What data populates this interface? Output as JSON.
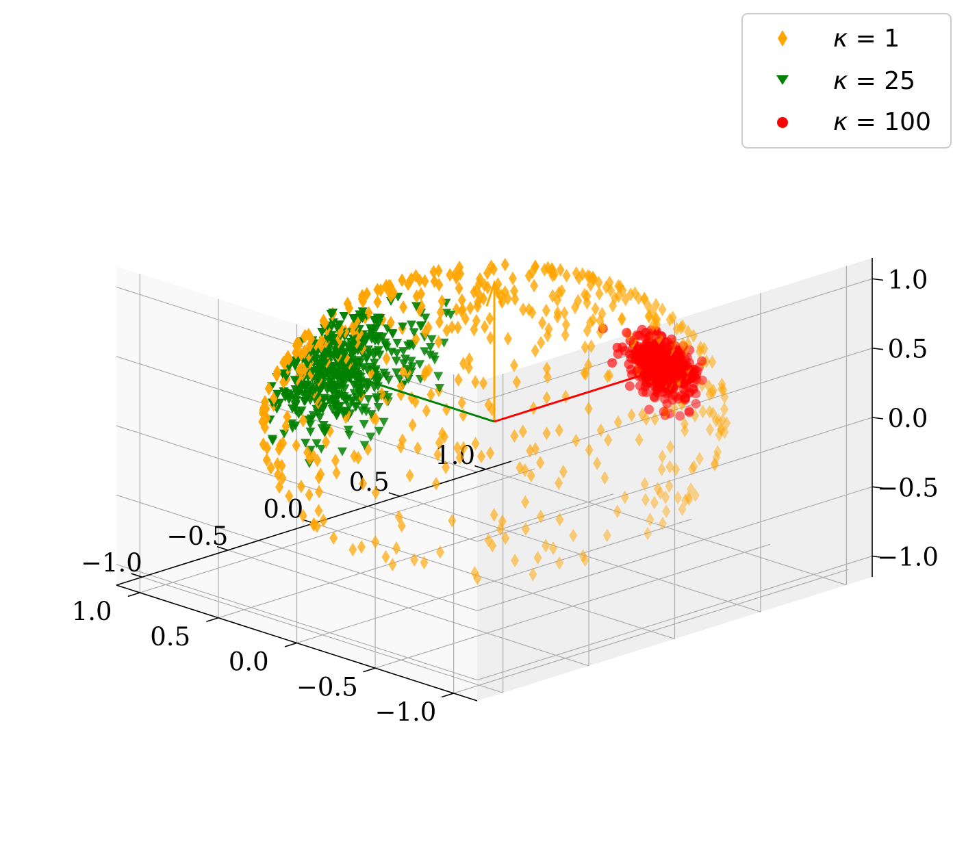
{
  "chart_data": {
    "type": "scatter",
    "projection": "3d",
    "title": "",
    "xlabel": "",
    "ylabel": "",
    "zlabel": "",
    "xlim": [
      -1.15,
      1.15
    ],
    "ylim": [
      -1.15,
      1.15
    ],
    "zlim": [
      -1.15,
      1.15
    ],
    "grid": true,
    "xticks": [
      "−1.0",
      "−0.5",
      "0.0",
      "0.5",
      "1.0"
    ],
    "yticks": [
      "−1.0",
      "−0.5",
      "0.0",
      "0.5",
      "1.0"
    ],
    "zticks": [
      "−1.0",
      "−0.5",
      "0.0",
      "0.5",
      "1.0"
    ],
    "tick_values": [
      -1.0,
      -0.5,
      0.0,
      0.5,
      1.0
    ],
    "legend_position": "top-right",
    "series": [
      {
        "name": "κ = 1",
        "legend_symbol": "κ",
        "legend_value": "= 1",
        "kappa": 1,
        "marker": "diamond",
        "color": "#ffa500",
        "n_points": 500,
        "mean_direction": [
          0,
          0,
          1
        ],
        "seed": 11
      },
      {
        "name": "κ = 25",
        "legend_symbol": "κ",
        "legend_value": "= 25",
        "kappa": 25,
        "marker": "triangle-down",
        "color": "#008000",
        "n_points": 500,
        "mean_direction": [
          1,
          0,
          0
        ],
        "seed": 23
      },
      {
        "name": "κ = 100",
        "legend_symbol": "κ",
        "legend_value": "= 100",
        "kappa": 100,
        "marker": "circle",
        "color": "#ff0000",
        "n_points": 500,
        "mean_direction": [
          0,
          1,
          0
        ],
        "seed": 37
      }
    ],
    "arrows": [
      {
        "name": "orange-mean-direction",
        "from": [
          0,
          0,
          0
        ],
        "to": [
          0,
          0,
          1
        ],
        "color": "#ffa500"
      },
      {
        "name": "green-mean-direction",
        "from": [
          0,
          0,
          0
        ],
        "to": [
          1,
          0,
          0
        ],
        "color": "#008000"
      },
      {
        "name": "red-mean-direction",
        "from": [
          0,
          0,
          0
        ],
        "to": [
          0,
          1,
          0
        ],
        "color": "#ff0000"
      }
    ]
  }
}
